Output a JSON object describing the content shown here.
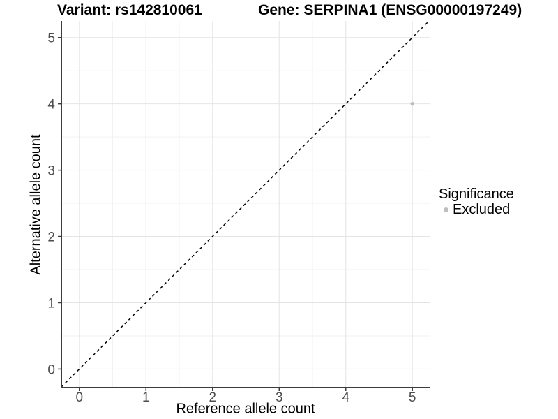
{
  "page": {
    "background": "#FFFFFF"
  },
  "header": {
    "variant_title": "Variant: rs142810061",
    "gene_title": "Gene: SERPINA1 (ENSG00000197249)"
  },
  "axes": {
    "x_label": "Reference allele count",
    "y_label": "Alternative allele count"
  },
  "legend": {
    "title": "Significance",
    "items": [
      {
        "label": "Excluded",
        "color": "#BEBEBE"
      }
    ]
  },
  "chart_data": {
    "type": "scatter",
    "title": "Variant: rs142810061 / Gene: SERPINA1 (ENSG00000197249)",
    "xlabel": "Reference allele count",
    "ylabel": "Alternative allele count",
    "xlim": [
      -0.27,
      5.27
    ],
    "ylim": [
      -0.28,
      5.25
    ],
    "xticks": [
      0,
      1,
      2,
      3,
      4,
      5
    ],
    "yticks": [
      0,
      1,
      2,
      3,
      4,
      5
    ],
    "minor_grid_step": 0.5,
    "grid": true,
    "legend_position": "right",
    "series": [
      {
        "name": "Excluded",
        "color": "#BEBEBE",
        "point_radius": 2.8,
        "points": [
          {
            "x": 5,
            "y": 4
          }
        ]
      }
    ],
    "reference_line": {
      "type": "identity",
      "line_style": "dashed",
      "color": "#000000",
      "dash": "4 4"
    },
    "style": {
      "panel_background": "#FFFFFF",
      "grid_major_color": "#E4E4E4",
      "grid_minor_color": "#F2F2F2",
      "axis_line_color": "#3C3C3C",
      "tick_label_color": "#4D4D4D"
    }
  }
}
